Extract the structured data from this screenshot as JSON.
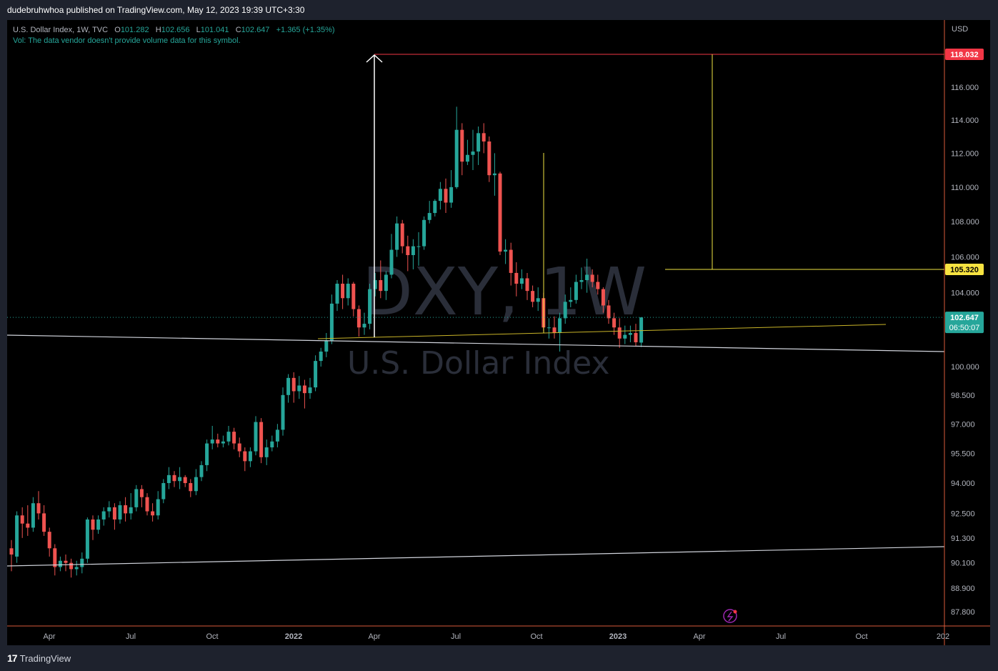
{
  "header": {
    "published_text": "dudebruhwhoa published on TradingView.com, May 12, 2023 19:39 UTC+3:30"
  },
  "legend": {
    "symbol": "U.S. Dollar Index, 1W, TVC",
    "o_label": "O",
    "o_value": "101.282",
    "h_label": "H",
    "h_value": "102.656",
    "l_label": "L",
    "l_value": "101.041",
    "c_label": "C",
    "c_value": "102.647",
    "change": "+1.365 (+1.35%)",
    "vol_text": "Vol: The data vendor doesn't provide volume data for this symbol."
  },
  "watermark": {
    "ticker": "DXY, 1W",
    "name": "U.S. Dollar Index"
  },
  "footer": {
    "brand": "TradingView",
    "logo_glyph": "17"
  },
  "colors": {
    "up": "#26a69a",
    "down": "#ef5350",
    "background": "#000000",
    "frame": "#1e222d",
    "axis_text": "#b2b5be",
    "trendline": "#d1d4dc",
    "yellow": "#f0e442",
    "target_red": "#f23645"
  },
  "chart_data": {
    "type": "candlestick",
    "timeframe": "1W",
    "currency": "USD",
    "y_axis": {
      "ticks": [
        "87.800",
        "88.900",
        "90.100",
        "91.300",
        "92.500",
        "94.000",
        "95.500",
        "97.000",
        "98.500",
        "100.000",
        "104.000",
        "106.000",
        "108.000",
        "110.000",
        "112.000",
        "114.000",
        "116.000"
      ],
      "scale": "log"
    },
    "x_axis": {
      "ticks": [
        "Apr",
        "Jul",
        "Oct",
        "2022",
        "Apr",
        "Jul",
        "Oct",
        "2023",
        "Apr",
        "Jul",
        "Oct",
        "202"
      ]
    },
    "price_labels": {
      "target": "118.032",
      "level": "105.320",
      "last": "102.647",
      "countdown": "06:50:07"
    },
    "candles": [
      [
        90.8,
        90.5,
        89.7,
        91.2
      ],
      [
        90.4,
        92.4,
        90.1,
        92.6
      ],
      [
        92.4,
        92.0,
        91.3,
        92.8
      ],
      [
        92.0,
        91.8,
        91.4,
        92.9
      ],
      [
        91.8,
        93.0,
        91.6,
        93.3
      ],
      [
        93.0,
        92.5,
        92.2,
        93.6
      ],
      [
        92.5,
        91.6,
        91.4,
        92.9
      ],
      [
        91.6,
        90.8,
        90.4,
        91.8
      ],
      [
        90.8,
        89.9,
        89.5,
        91.0
      ],
      [
        89.9,
        90.2,
        89.7,
        90.4
      ],
      [
        90.2,
        90.1,
        89.7,
        90.5
      ],
      [
        90.1,
        89.8,
        89.4,
        90.3
      ],
      [
        89.8,
        89.9,
        89.5,
        90.2
      ],
      [
        89.9,
        90.3,
        89.6,
        90.6
      ],
      [
        90.3,
        92.2,
        90.1,
        92.3
      ],
      [
        92.2,
        91.7,
        91.2,
        92.4
      ],
      [
        91.7,
        92.2,
        91.5,
        92.4
      ],
      [
        92.2,
        92.6,
        91.9,
        92.8
      ],
      [
        92.6,
        92.8,
        92.3,
        93.1
      ],
      [
        92.8,
        92.2,
        91.7,
        93.0
      ],
      [
        92.2,
        92.9,
        92.0,
        93.1
      ],
      [
        92.9,
        92.5,
        92.1,
        93.3
      ],
      [
        92.5,
        92.8,
        92.2,
        93.5
      ],
      [
        92.8,
        93.7,
        92.6,
        93.9
      ],
      [
        93.7,
        93.3,
        92.8,
        93.9
      ],
      [
        93.3,
        92.6,
        92.4,
        93.5
      ],
      [
        92.6,
        92.4,
        92.1,
        93.0
      ],
      [
        92.4,
        93.2,
        92.2,
        93.6
      ],
      [
        93.2,
        94.0,
        93.0,
        94.2
      ],
      [
        94.0,
        94.4,
        93.7,
        94.8
      ],
      [
        94.4,
        94.1,
        93.8,
        94.6
      ],
      [
        94.1,
        94.3,
        93.7,
        94.8
      ],
      [
        94.3,
        94.0,
        93.8,
        94.4
      ],
      [
        94.0,
        93.6,
        93.3,
        94.2
      ],
      [
        93.6,
        94.3,
        93.4,
        94.7
      ],
      [
        94.3,
        94.9,
        94.1,
        95.1
      ],
      [
        94.9,
        96.0,
        94.6,
        96.2
      ],
      [
        96.0,
        96.2,
        95.7,
        96.9
      ],
      [
        96.2,
        96.0,
        95.8,
        96.5
      ],
      [
        96.0,
        96.1,
        95.8,
        96.4
      ],
      [
        96.1,
        96.6,
        95.9,
        96.9
      ],
      [
        96.6,
        96.0,
        95.7,
        96.8
      ],
      [
        96.0,
        95.6,
        95.3,
        96.3
      ],
      [
        95.6,
        95.1,
        94.6,
        95.8
      ],
      [
        95.1,
        95.6,
        94.8,
        95.8
      ],
      [
        95.6,
        97.1,
        95.4,
        97.4
      ],
      [
        97.1,
        95.3,
        95.0,
        97.3
      ],
      [
        95.3,
        95.8,
        94.9,
        96.2
      ],
      [
        95.8,
        96.1,
        95.6,
        96.4
      ],
      [
        96.1,
        96.7,
        95.8,
        97.0
      ],
      [
        96.7,
        98.5,
        96.4,
        98.9
      ],
      [
        98.5,
        99.4,
        98.1,
        99.6
      ],
      [
        99.4,
        98.7,
        98.1,
        99.7
      ],
      [
        98.7,
        99.0,
        98.3,
        99.5
      ],
      [
        99.0,
        98.6,
        97.8,
        99.3
      ],
      [
        98.6,
        98.9,
        98.3,
        99.4
      ],
      [
        98.9,
        100.3,
        98.7,
        100.6
      ],
      [
        100.3,
        100.8,
        100.0,
        101.0
      ],
      [
        100.8,
        101.4,
        100.5,
        101.8
      ],
      [
        101.4,
        103.4,
        101.2,
        103.9
      ],
      [
        103.4,
        104.5,
        103.0,
        104.7
      ],
      [
        104.5,
        103.7,
        103.1,
        105.0
      ],
      [
        103.7,
        104.5,
        103.3,
        104.8
      ],
      [
        104.5,
        103.1,
        102.7,
        104.6
      ],
      [
        103.1,
        102.1,
        101.6,
        103.3
      ],
      [
        102.1,
        102.3,
        101.7,
        102.9
      ],
      [
        102.3,
        104.2,
        102.0,
        104.5
      ],
      [
        104.2,
        104.7,
        103.8,
        105.1
      ],
      [
        104.7,
        104.1,
        103.7,
        105.8
      ],
      [
        104.1,
        105.0,
        103.6,
        105.2
      ],
      [
        105.0,
        106.4,
        104.8,
        107.3
      ],
      [
        106.4,
        107.9,
        106.0,
        108.3
      ],
      [
        107.9,
        106.6,
        106.2,
        108.1
      ],
      [
        106.6,
        106.1,
        105.2,
        107.2
      ],
      [
        106.1,
        106.6,
        105.3,
        107.0
      ],
      [
        106.6,
        106.6,
        105.5,
        107.4
      ],
      [
        106.6,
        108.1,
        106.4,
        108.3
      ],
      [
        108.1,
        108.5,
        107.9,
        109.2
      ],
      [
        108.5,
        109.2,
        108.3,
        109.3
      ],
      [
        109.2,
        109.9,
        108.7,
        110.3
      ],
      [
        109.9,
        109.1,
        108.5,
        110.5
      ],
      [
        109.1,
        110.0,
        108.8,
        111.0
      ],
      [
        110.0,
        113.4,
        109.9,
        114.8
      ],
      [
        113.4,
        111.5,
        110.7,
        113.8
      ],
      [
        111.5,
        111.9,
        111.3,
        112.8
      ],
      [
        111.9,
        112.1,
        111.0,
        113.4
      ],
      [
        112.1,
        113.2,
        111.3,
        113.6
      ],
      [
        113.2,
        112.7,
        112.0,
        113.8
      ],
      [
        112.7,
        110.7,
        110.3,
        113.0
      ],
      [
        110.7,
        110.8,
        109.5,
        112.0
      ],
      [
        110.8,
        106.3,
        106.1,
        110.9
      ],
      [
        106.3,
        106.4,
        105.6,
        107.0
      ],
      [
        106.4,
        105.1,
        104.4,
        106.8
      ],
      [
        105.1,
        104.5,
        103.8,
        105.7
      ],
      [
        104.5,
        104.8,
        104.2,
        105.3
      ],
      [
        104.8,
        104.1,
        103.6,
        105.1
      ],
      [
        104.1,
        103.5,
        103.2,
        104.4
      ],
      [
        103.5,
        103.7,
        103.0,
        104.3
      ],
      [
        103.7,
        102.1,
        101.9,
        104.0
      ],
      [
        102.1,
        102.1,
        101.5,
        102.6
      ],
      [
        102.1,
        101.8,
        101.5,
        102.7
      ],
      [
        101.8,
        102.6,
        100.8,
        102.9
      ],
      [
        102.6,
        103.5,
        102.3,
        103.9
      ],
      [
        103.5,
        103.6,
        103.2,
        104.3
      ],
      [
        103.6,
        104.6,
        103.4,
        105.0
      ],
      [
        104.6,
        104.7,
        104.2,
        105.4
      ],
      [
        104.7,
        105.0,
        104.0,
        105.9
      ],
      [
        105.0,
        104.6,
        104.3,
        105.3
      ],
      [
        104.6,
        104.2,
        103.9,
        105.0
      ],
      [
        104.2,
        103.3,
        102.9,
        104.3
      ],
      [
        103.3,
        102.6,
        102.3,
        103.6
      ],
      [
        102.6,
        102.1,
        101.7,
        102.9
      ],
      [
        102.1,
        101.5,
        101.0,
        102.6
      ],
      [
        101.5,
        101.7,
        101.2,
        102.2
      ],
      [
        101.7,
        101.8,
        101.3,
        102.2
      ],
      [
        101.8,
        101.3,
        101.1,
        102.3
      ],
      [
        101.282,
        102.647,
        101.041,
        102.656
      ]
    ]
  }
}
